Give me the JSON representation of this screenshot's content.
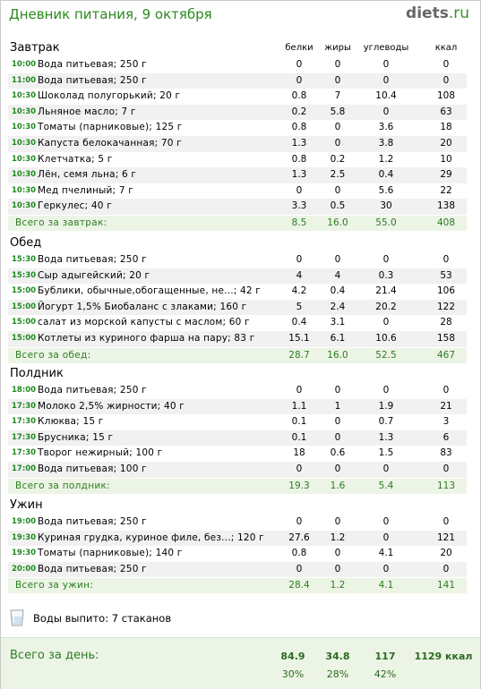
{
  "header": {
    "title": "Дневник питания, 9 октября",
    "logo_main": "diets",
    "logo_suffix": ".ru"
  },
  "columns": {
    "protein": "белки",
    "fat": "жиры",
    "carbs": "углеводы",
    "kcal": "ккал"
  },
  "meals": [
    {
      "title": "Завтрак",
      "rows": [
        {
          "time": "10:00",
          "name": "Вода питьевая; 250 г",
          "protein": "0",
          "fat": "0",
          "carbs": "0",
          "kcal": "0"
        },
        {
          "time": "11:00",
          "name": "Вода питьевая; 250 г",
          "protein": "0",
          "fat": "0",
          "carbs": "0",
          "kcal": "0"
        },
        {
          "time": "10:30",
          "name": "Шоколад полугорький; 20 г",
          "protein": "0.8",
          "fat": "7",
          "carbs": "10.4",
          "kcal": "108"
        },
        {
          "time": "10:30",
          "name": "Льняное масло; 7 г",
          "protein": "0.2",
          "fat": "5.8",
          "carbs": "0",
          "kcal": "63"
        },
        {
          "time": "10:30",
          "name": "Томаты (парниковые); 125 г",
          "protein": "0.8",
          "fat": "0",
          "carbs": "3.6",
          "kcal": "18"
        },
        {
          "time": "10:30",
          "name": "Капуста белокачанная; 70 г",
          "protein": "1.3",
          "fat": "0",
          "carbs": "3.8",
          "kcal": "20"
        },
        {
          "time": "10:30",
          "name": "Клетчатка; 5 г",
          "protein": "0.8",
          "fat": "0.2",
          "carbs": "1.2",
          "kcal": "10"
        },
        {
          "time": "10:30",
          "name": "Лён, семя льна; 6 г",
          "protein": "1.3",
          "fat": "2.5",
          "carbs": "0.4",
          "kcal": "29"
        },
        {
          "time": "10:30",
          "name": "Мед пчелиный; 7 г",
          "protein": "0",
          "fat": "0",
          "carbs": "5.6",
          "kcal": "22"
        },
        {
          "time": "10:30",
          "name": "Геркулес; 40 г",
          "protein": "3.3",
          "fat": "0.5",
          "carbs": "30",
          "kcal": "138"
        }
      ],
      "total": {
        "label": "Всего за завтрак:",
        "protein": "8.5",
        "fat": "16.0",
        "carbs": "55.0",
        "kcal": "408"
      }
    },
    {
      "title": "Обед",
      "rows": [
        {
          "time": "15:30",
          "name": "Вода питьевая; 250 г",
          "protein": "0",
          "fat": "0",
          "carbs": "0",
          "kcal": "0"
        },
        {
          "time": "15:30",
          "name": "Сыр адыгейский; 20 г",
          "protein": "4",
          "fat": "4",
          "carbs": "0.3",
          "kcal": "53"
        },
        {
          "time": "15:00",
          "name": "Бублики, обычные,обогащенные, не...; 42 г",
          "protein": "4.2",
          "fat": "0.4",
          "carbs": "21.4",
          "kcal": "106"
        },
        {
          "time": "15:00",
          "name": "Йогурт 1,5% Биобаланс с злаками; 160 г",
          "protein": "5",
          "fat": "2.4",
          "carbs": "20.2",
          "kcal": "122"
        },
        {
          "time": "15:00",
          "name": "салат из морской капусты с маслом; 60 г",
          "protein": "0.4",
          "fat": "3.1",
          "carbs": "0",
          "kcal": "28"
        },
        {
          "time": "15:00",
          "name": "Котлеты из куриного фарша на пару; 83 г",
          "protein": "15.1",
          "fat": "6.1",
          "carbs": "10.6",
          "kcal": "158"
        }
      ],
      "total": {
        "label": "Всего за обед:",
        "protein": "28.7",
        "fat": "16.0",
        "carbs": "52.5",
        "kcal": "467"
      }
    },
    {
      "title": "Полдник",
      "rows": [
        {
          "time": "18:00",
          "name": "Вода питьевая; 250 г",
          "protein": "0",
          "fat": "0",
          "carbs": "0",
          "kcal": "0"
        },
        {
          "time": "17:30",
          "name": "Молоко 2,5% жирности; 40 г",
          "protein": "1.1",
          "fat": "1",
          "carbs": "1.9",
          "kcal": "21"
        },
        {
          "time": "17:30",
          "name": "Клюква; 15 г",
          "protein": "0.1",
          "fat": "0",
          "carbs": "0.7",
          "kcal": "3"
        },
        {
          "time": "17:30",
          "name": "Брусника; 15 г",
          "protein": "0.1",
          "fat": "0",
          "carbs": "1.3",
          "kcal": "6"
        },
        {
          "time": "17:30",
          "name": "Творог нежирный; 100 г",
          "protein": "18",
          "fat": "0.6",
          "carbs": "1.5",
          "kcal": "83"
        },
        {
          "time": "17:00",
          "name": "Вода питьевая; 100 г",
          "protein": "0",
          "fat": "0",
          "carbs": "0",
          "kcal": "0"
        }
      ],
      "total": {
        "label": "Всего за полдник:",
        "protein": "19.3",
        "fat": "1.6",
        "carbs": "5.4",
        "kcal": "113"
      }
    },
    {
      "title": "Ужин",
      "rows": [
        {
          "time": "19:00",
          "name": "Вода питьевая; 250 г",
          "protein": "0",
          "fat": "0",
          "carbs": "0",
          "kcal": "0"
        },
        {
          "time": "19:30",
          "name": "Куриная грудка, куриное филе, без...; 120 г",
          "protein": "27.6",
          "fat": "1.2",
          "carbs": "0",
          "kcal": "121"
        },
        {
          "time": "19:30",
          "name": "Томаты (парниковые); 140 г",
          "protein": "0.8",
          "fat": "0",
          "carbs": "4.1",
          "kcal": "20"
        },
        {
          "time": "20:00",
          "name": "Вода питьевая; 250 г",
          "protein": "0",
          "fat": "0",
          "carbs": "0",
          "kcal": "0"
        }
      ],
      "total": {
        "label": "Всего за ужин:",
        "protein": "28.4",
        "fat": "1.2",
        "carbs": "4.1",
        "kcal": "141"
      }
    }
  ],
  "water": {
    "label": "Воды выпито: 7 стаканов",
    "icon": "glass-icon"
  },
  "day_total": {
    "label": "Всего за день:",
    "protein": "84.9",
    "fat": "34.8",
    "carbs": "117",
    "kcal": "1129 ккал",
    "protein_pct": "30%",
    "fat_pct": "28%",
    "carbs_pct": "42%"
  },
  "colors": {
    "accent_green": "#2b8a1e",
    "time_green": "#1f8a1f",
    "row_alt": "#f1f1f1",
    "total_bg": "#ecf4e6"
  }
}
